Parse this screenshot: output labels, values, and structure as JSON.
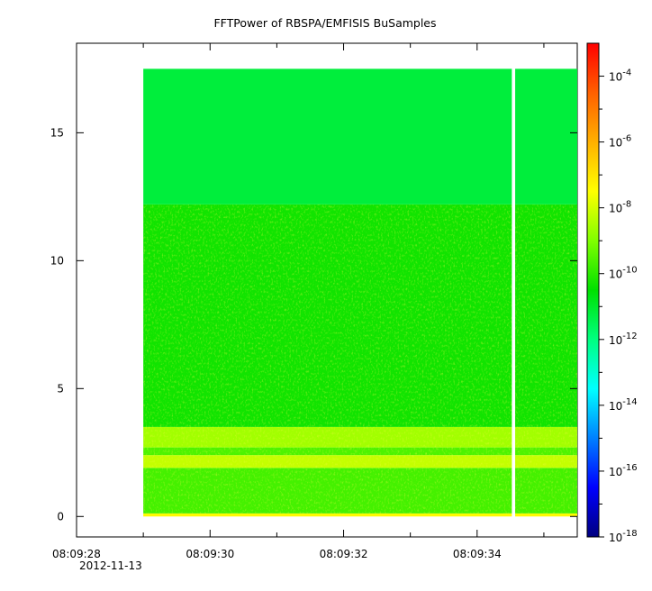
{
  "chart_data": {
    "type": "heatmap",
    "title": "FFTPower of RBSPA/EMFISIS  BuSamples",
    "xlabel": "",
    "ylabel": "",
    "x_axis": {
      "type": "time",
      "range": [
        "08:09:28.0",
        "08:09:35.5"
      ],
      "tick_labels": [
        "08:09:28",
        "08:09:30",
        "08:09:32",
        "08:09:34"
      ],
      "tick_values_s": [
        28,
        30,
        32,
        34
      ],
      "minor_tick_values_s": [
        29,
        31,
        33,
        35
      ],
      "date_label": "2012-11-13"
    },
    "y_axis": {
      "range": [
        -0.8,
        18.5
      ],
      "tick_values": [
        0,
        5,
        10,
        15
      ],
      "tick_labels": [
        "0",
        "5",
        "10",
        "15"
      ]
    },
    "colorbar": {
      "scale": "log",
      "range": [
        1e-18,
        0.001
      ],
      "tick_exponents": [
        -18,
        -16,
        -14,
        -12,
        -10,
        -8,
        -6,
        -4
      ],
      "tick_base": "10",
      "colormap": [
        "#00007f",
        "#0000ff",
        "#0080ff",
        "#00ffff",
        "#00ff80",
        "#00e000",
        "#80ff00",
        "#ffff00",
        "#ffb000",
        "#ff6000",
        "#ff0000"
      ]
    },
    "data_extent": {
      "x_start_s": 29.0,
      "x_end_s": 35.5,
      "y_min": 0.0,
      "y_max": 17.5
    },
    "gap": {
      "x_start_s": 34.52,
      "x_end_s": 34.57
    },
    "bands": [
      {
        "y_from": 0.0,
        "y_to": 0.12,
        "log10_power": -7.4,
        "description": ""
      },
      {
        "y_from": 0.12,
        "y_to": 1.9,
        "log10_power": -9.7
      },
      {
        "y_from": 1.9,
        "y_to": 2.4,
        "log10_power": -8.2
      },
      {
        "y_from": 2.4,
        "y_to": 2.7,
        "log10_power": -9.6
      },
      {
        "y_from": 2.7,
        "y_to": 3.5,
        "log10_power": -8.6
      },
      {
        "y_from": 3.5,
        "y_to": 12.2,
        "log10_power": -10.3
      },
      {
        "y_from": 12.2,
        "y_to": 17.5,
        "log10_power": -11.2
      }
    ]
  }
}
